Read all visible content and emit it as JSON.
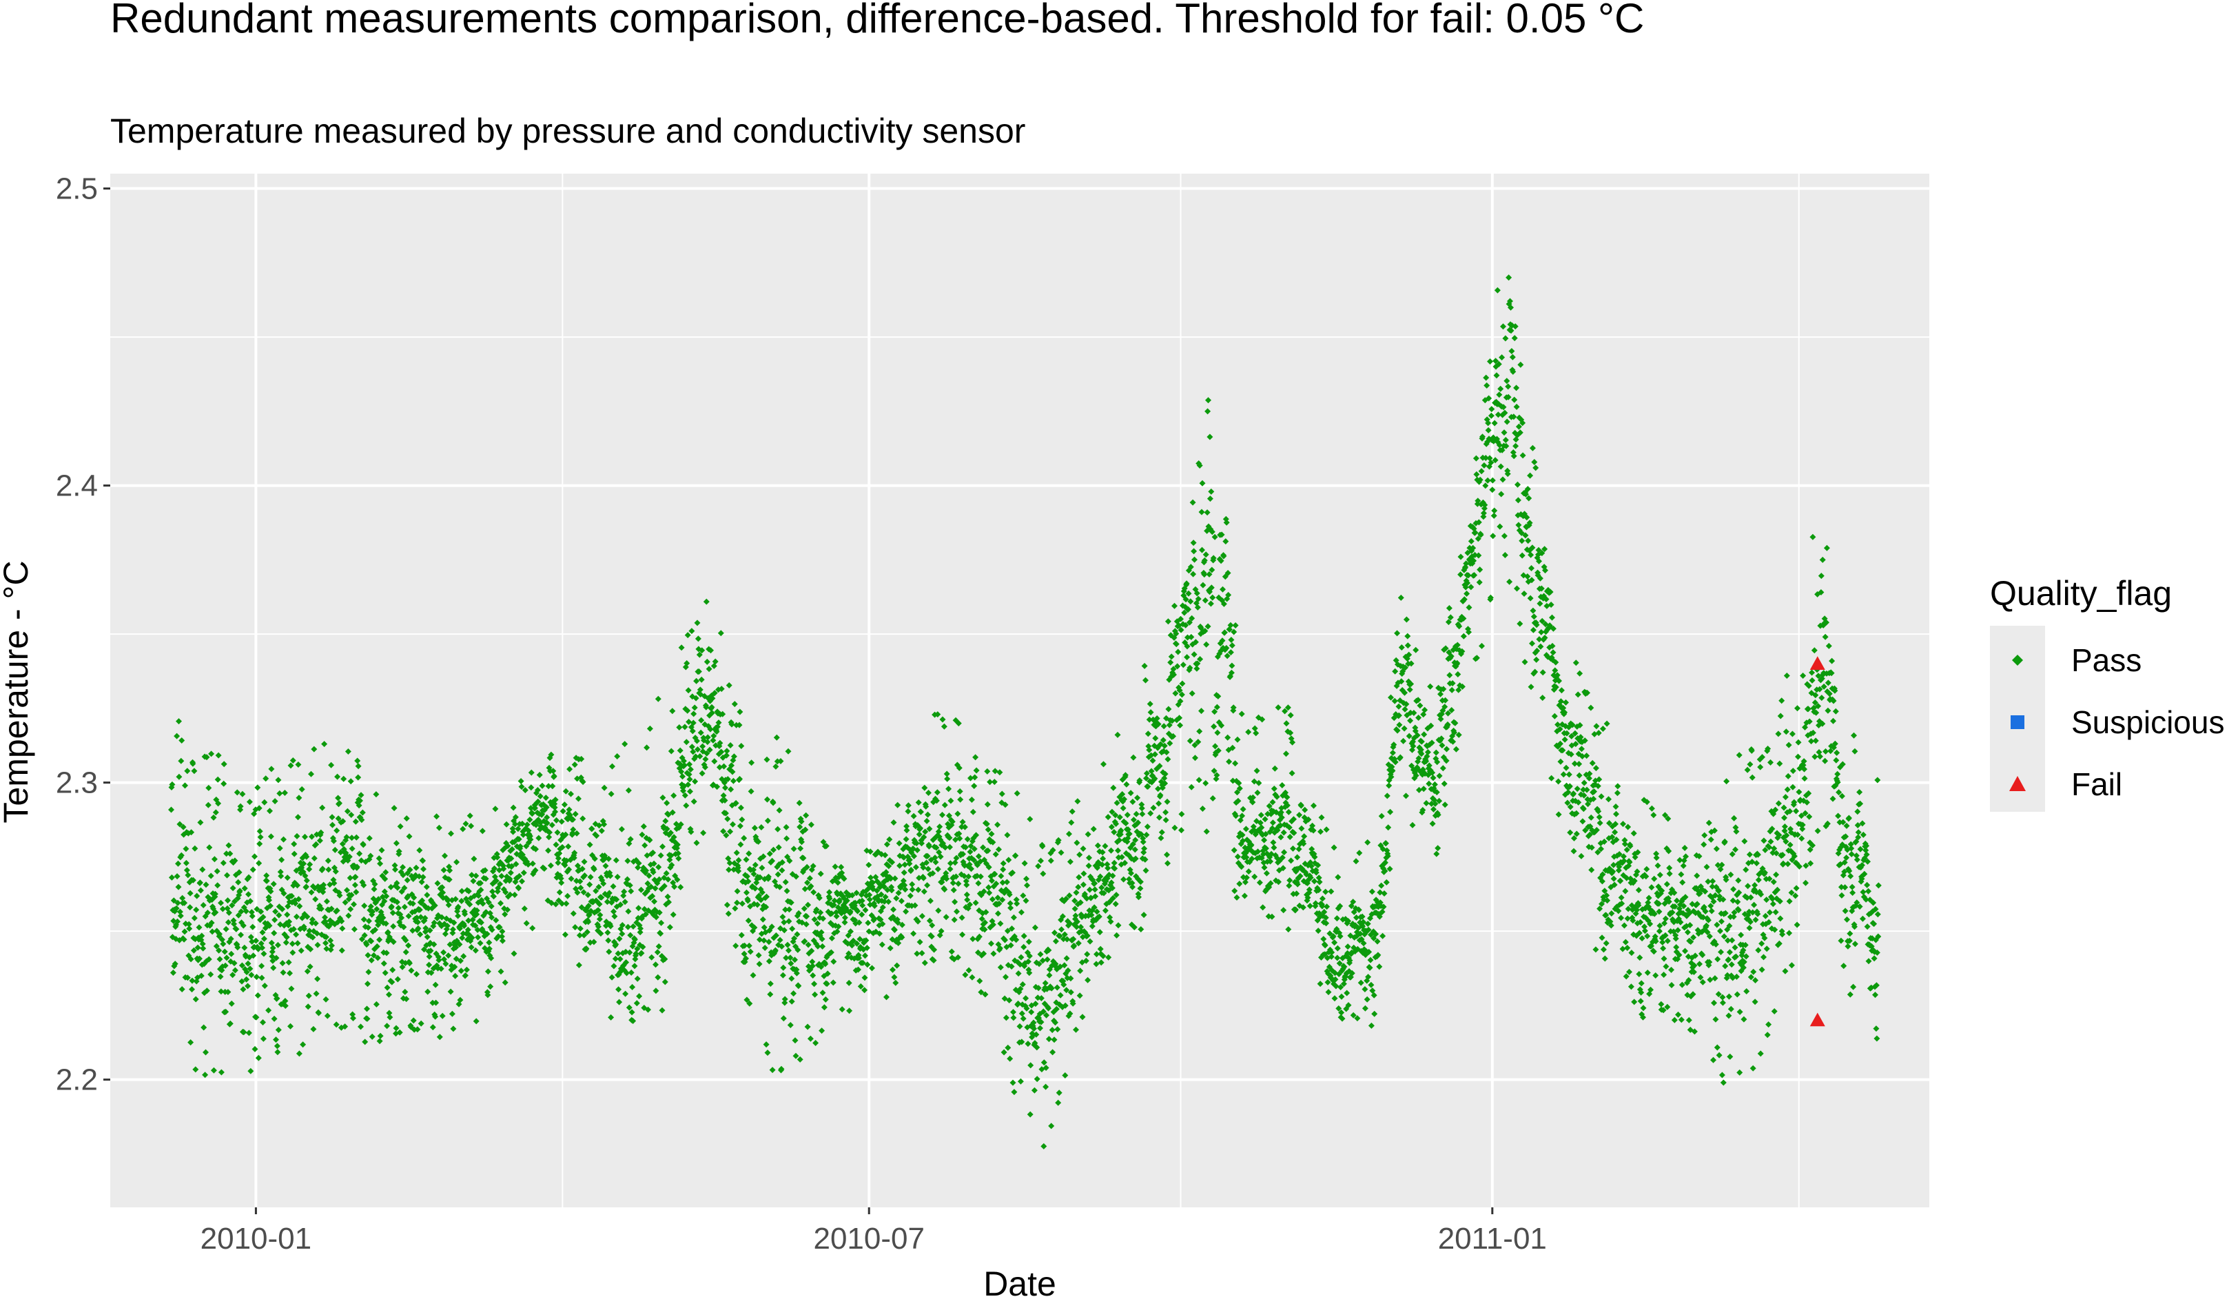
{
  "title": "Redundant measurements comparison, difference-based. Threshold for fail: 0.05 °C",
  "subtitle": "Temperature measured by pressure and conductivity sensor",
  "colors": {
    "pass": "#0c9a0c",
    "suspicious": "#1a6fe0",
    "fail": "#e81d1d",
    "panel_bg": "#ebebeb",
    "grid": "#ffffff"
  },
  "legend": {
    "title": "Quality_flag",
    "placement": "right",
    "items": [
      {
        "label": "Pass",
        "color": "#0c9a0c",
        "shape": "diamond"
      },
      {
        "label": "Suspicious",
        "color": "#1a6fe0",
        "shape": "square"
      },
      {
        "label": "Fail",
        "color": "#e81d1d",
        "shape": "triangle"
      }
    ]
  },
  "chart_data": {
    "type": "scatter",
    "xlabel": "Date",
    "ylabel": "Temperature - °C",
    "xlim": [
      "2009-11-19",
      "2011-05-10"
    ],
    "ylim": [
      2.157,
      2.505
    ],
    "x_ticks": [
      "2010-01",
      "2010-07",
      "2011-01"
    ],
    "y_ticks": [
      "2.2",
      "2.3",
      "2.4",
      "2.5"
    ],
    "grid": true,
    "pass_series_envelope": [
      {
        "date": "2009-12-07",
        "mean": 2.255,
        "min": 2.2,
        "max": 2.33
      },
      {
        "date": "2009-12-20",
        "mean": 2.245,
        "min": 2.2,
        "max": 2.31
      },
      {
        "date": "2010-01-01",
        "mean": 2.25,
        "min": 2.195,
        "max": 2.3
      },
      {
        "date": "2010-01-20",
        "mean": 2.26,
        "min": 2.215,
        "max": 2.32
      },
      {
        "date": "2010-02-15",
        "mean": 2.255,
        "min": 2.21,
        "max": 2.29
      },
      {
        "date": "2010-03-10",
        "mean": 2.26,
        "min": 2.22,
        "max": 2.29
      },
      {
        "date": "2010-03-28",
        "mean": 2.29,
        "min": 2.26,
        "max": 2.31
      },
      {
        "date": "2010-04-15",
        "mean": 2.255,
        "min": 2.215,
        "max": 2.31
      },
      {
        "date": "2010-05-01",
        "mean": 2.265,
        "min": 2.22,
        "max": 2.33
      },
      {
        "date": "2010-05-15",
        "mean": 2.33,
        "min": 2.29,
        "max": 2.37
      },
      {
        "date": "2010-05-25",
        "mean": 2.27,
        "min": 2.22,
        "max": 2.32
      },
      {
        "date": "2010-06-05",
        "mean": 2.245,
        "min": 2.195,
        "max": 2.32
      },
      {
        "date": "2010-06-20",
        "mean": 2.255,
        "min": 2.22,
        "max": 2.28
      },
      {
        "date": "2010-07-05",
        "mean": 2.26,
        "min": 2.225,
        "max": 2.28
      },
      {
        "date": "2010-07-20",
        "mean": 2.285,
        "min": 2.24,
        "max": 2.33
      },
      {
        "date": "2010-08-05",
        "mean": 2.27,
        "min": 2.22,
        "max": 2.33
      },
      {
        "date": "2010-08-20",
        "mean": 2.22,
        "min": 2.17,
        "max": 2.28
      },
      {
        "date": "2010-09-05",
        "mean": 2.265,
        "min": 2.23,
        "max": 2.3
      },
      {
        "date": "2010-09-20",
        "mean": 2.29,
        "min": 2.25,
        "max": 2.34
      },
      {
        "date": "2010-10-01",
        "mean": 2.35,
        "min": 2.28,
        "max": 2.37
      },
      {
        "date": "2010-10-10",
        "mean": 2.38,
        "min": 2.28,
        "max": 2.445
      },
      {
        "date": "2010-10-20",
        "mean": 2.28,
        "min": 2.25,
        "max": 2.32
      },
      {
        "date": "2010-11-01",
        "mean": 2.29,
        "min": 2.25,
        "max": 2.33
      },
      {
        "date": "2010-11-15",
        "mean": 2.245,
        "min": 2.22,
        "max": 2.28
      },
      {
        "date": "2010-11-28",
        "mean": 2.25,
        "min": 2.215,
        "max": 2.28
      },
      {
        "date": "2010-12-05",
        "mean": 2.33,
        "min": 2.29,
        "max": 2.365
      },
      {
        "date": "2010-12-15",
        "mean": 2.3,
        "min": 2.27,
        "max": 2.33
      },
      {
        "date": "2010-12-28",
        "mean": 2.39,
        "min": 2.34,
        "max": 2.42
      },
      {
        "date": "2011-01-05",
        "mean": 2.43,
        "min": 2.37,
        "max": 2.49
      },
      {
        "date": "2011-01-20",
        "mean": 2.33,
        "min": 2.29,
        "max": 2.36
      },
      {
        "date": "2011-02-01",
        "mean": 2.28,
        "min": 2.24,
        "max": 2.33
      },
      {
        "date": "2011-02-15",
        "mean": 2.26,
        "min": 2.22,
        "max": 2.3
      },
      {
        "date": "2011-03-01",
        "mean": 2.255,
        "min": 2.21,
        "max": 2.29
      },
      {
        "date": "2011-03-15",
        "mean": 2.25,
        "min": 2.19,
        "max": 2.31
      },
      {
        "date": "2011-03-25",
        "mean": 2.27,
        "min": 2.22,
        "max": 2.32
      },
      {
        "date": "2011-04-01",
        "mean": 2.29,
        "min": 2.24,
        "max": 2.35
      },
      {
        "date": "2011-04-08",
        "mean": 2.35,
        "min": 2.28,
        "max": 2.405
      },
      {
        "date": "2011-04-15",
        "mean": 2.28,
        "min": 2.23,
        "max": 2.32
      },
      {
        "date": "2011-04-25",
        "mean": 2.26,
        "min": 2.21,
        "max": 2.31
      }
    ],
    "fail_points": [
      {
        "date": "2011-04-07",
        "value": 2.34
      },
      {
        "date": "2011-04-07",
        "value": 2.22
      }
    ],
    "suspicious_points": []
  }
}
